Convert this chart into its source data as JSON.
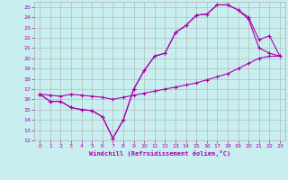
{
  "title": "",
  "xlabel": "Windchill (Refroidissement éolien,°C)",
  "bg_color": "#c8eef0",
  "grid_color": "#b0b0b0",
  "line_color": "#aa00aa",
  "xlim": [
    -0.5,
    23.5
  ],
  "ylim": [
    12,
    25.5
  ],
  "xticks": [
    0,
    1,
    2,
    3,
    4,
    5,
    6,
    7,
    8,
    9,
    10,
    11,
    12,
    13,
    14,
    15,
    16,
    17,
    18,
    19,
    20,
    21,
    22,
    23
  ],
  "yticks": [
    12,
    13,
    14,
    15,
    16,
    17,
    18,
    19,
    20,
    21,
    22,
    23,
    24,
    25
  ],
  "line1_x": [
    0,
    1,
    2,
    3,
    4,
    5,
    6,
    7,
    8,
    9,
    10,
    11,
    12,
    13,
    14,
    15,
    16,
    17,
    18,
    19,
    20,
    21,
    22,
    23
  ],
  "line1_y": [
    16.5,
    15.8,
    15.8,
    15.2,
    15.0,
    14.9,
    14.3,
    12.2,
    14.0,
    17.0,
    18.8,
    20.2,
    20.5,
    22.5,
    23.2,
    24.2,
    24.3,
    25.2,
    25.2,
    24.7,
    23.8,
    21.0,
    20.5,
    20.2
  ],
  "line2_x": [
    0,
    1,
    2,
    3,
    4,
    5,
    6,
    7,
    8,
    9,
    10,
    11,
    12,
    13,
    14,
    15,
    16,
    17,
    18,
    19,
    20,
    21,
    22,
    23
  ],
  "line2_y": [
    16.5,
    15.8,
    15.8,
    15.2,
    15.0,
    14.9,
    14.3,
    12.2,
    14.0,
    17.0,
    18.8,
    20.2,
    20.5,
    22.5,
    23.2,
    24.2,
    24.3,
    25.2,
    25.2,
    24.7,
    24.0,
    21.8,
    22.2,
    20.2
  ],
  "line3_x": [
    0,
    1,
    2,
    3,
    4,
    5,
    6,
    7,
    8,
    9,
    10,
    11,
    12,
    13,
    14,
    15,
    16,
    17,
    18,
    19,
    20,
    21,
    22,
    23
  ],
  "line3_y": [
    16.5,
    16.4,
    16.3,
    16.5,
    16.4,
    16.3,
    16.2,
    16.0,
    16.2,
    16.4,
    16.6,
    16.8,
    17.0,
    17.2,
    17.4,
    17.6,
    17.9,
    18.2,
    18.5,
    19.0,
    19.5,
    20.0,
    20.2,
    20.2
  ]
}
